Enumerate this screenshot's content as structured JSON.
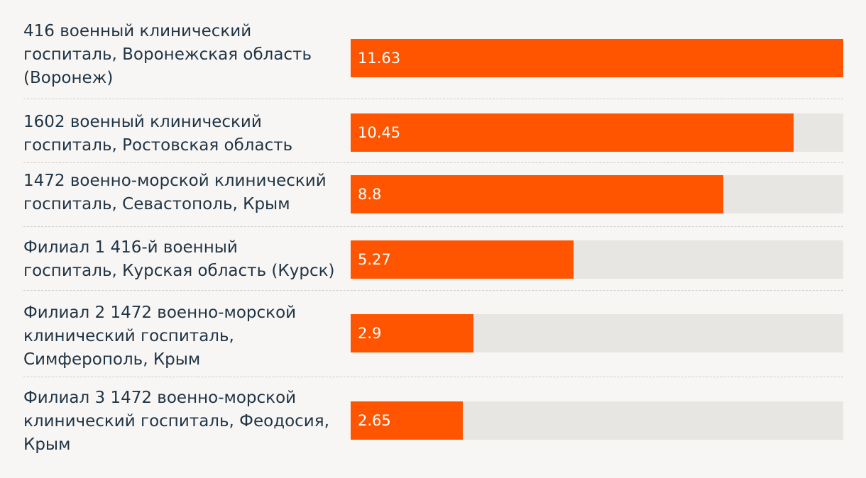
{
  "chart_data": {
    "type": "bar",
    "orientation": "horizontal",
    "title": "",
    "xlabel": "",
    "ylabel": "",
    "xlim": [
      0,
      11.63
    ],
    "grid": false,
    "legend": "none",
    "colors": {
      "bar": "#ff5500",
      "track": "#e8e6e3",
      "text": "#1f3445",
      "value_text": "#ffffff",
      "background": "#f8f6f4"
    },
    "categories": [
      "416 военный клинический госпиталь, Воронежская область (Воронеж)",
      "1602 военный клинический госпиталь, Ростовская область",
      "1472 военно-морской клинический госпиталь, Севастополь, Крым",
      "Филиал 1 416-й военный госпиталь, Курская область (Курск)",
      "Филиал 2 1472 военно-морской клинический госпиталь, Симферополь, Крым",
      "Филиал 3 1472 военно-морской клинический госпиталь, Феодосия, Крым"
    ],
    "values": [
      11.63,
      10.45,
      8.8,
      5.27,
      2.9,
      2.65
    ],
    "value_labels": [
      "11.63",
      "10.45",
      "8.8",
      "5.27",
      "2.9",
      "2.65"
    ]
  }
}
